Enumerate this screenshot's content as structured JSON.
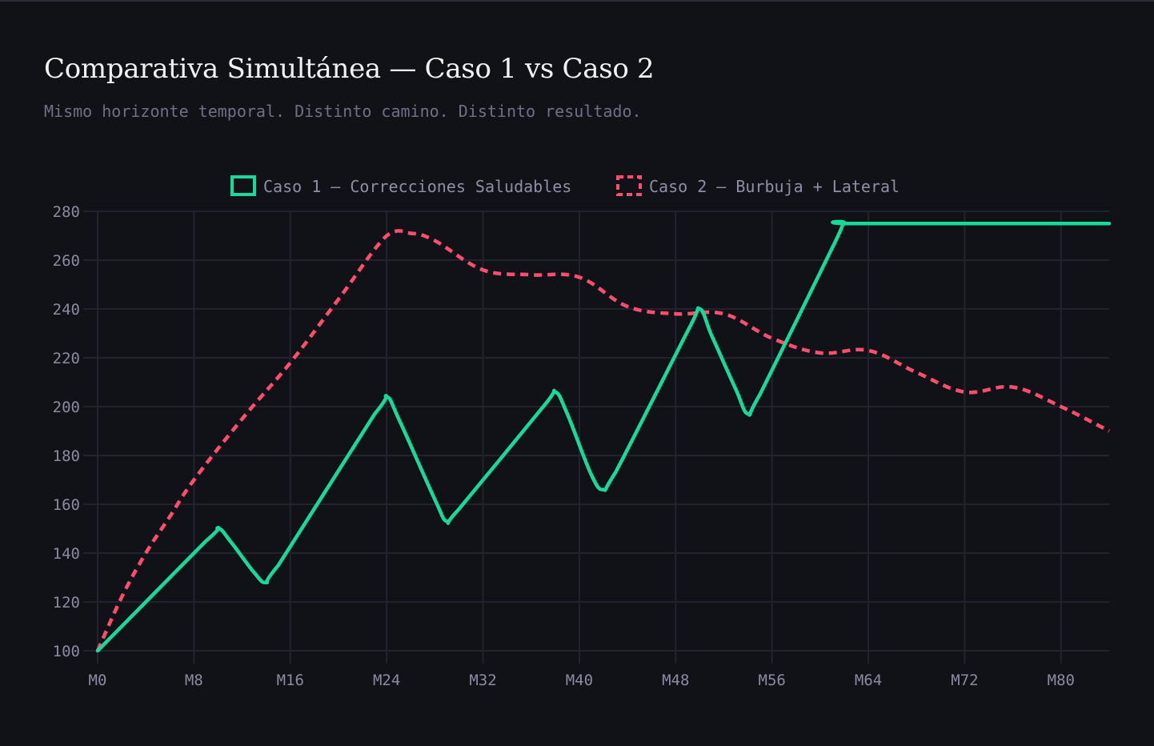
{
  "header": {
    "title": "Comparativa Simultánea — Caso 1 vs Caso 2",
    "subtitle": "Mismo horizonte temporal. Distinto camino. Distinto resultado."
  },
  "colors": {
    "background": "#111217",
    "grid": "#22232f",
    "case1": "#17d99a",
    "case2": "#ff4d6d",
    "tick": "#8a8aa2"
  },
  "chart_data": {
    "type": "line",
    "x_ticks": [
      "M0",
      "M8",
      "M16",
      "M24",
      "M32",
      "M40",
      "M48",
      "M56",
      "M64",
      "M72",
      "M80"
    ],
    "y_ticks": [
      "100",
      "120",
      "140",
      "160",
      "180",
      "200",
      "220",
      "240",
      "260",
      "280"
    ],
    "xlim": [
      0,
      84
    ],
    "ylim": [
      100,
      280
    ],
    "grid": true,
    "legend_position": "top-center",
    "series": [
      {
        "name": "Caso 1 — Correcciones Saludables",
        "style": "solid",
        "color": "#17d99a",
        "x": [
          0,
          9,
          10,
          11,
          13,
          14,
          15,
          23,
          24,
          25,
          28,
          29,
          30,
          37,
          38,
          39,
          41,
          42,
          43,
          49,
          50,
          51,
          53,
          54,
          55,
          61,
          62,
          63,
          84
        ],
        "y": [
          100,
          145,
          150,
          145,
          132,
          128,
          135,
          197,
          204,
          195,
          162,
          153,
          158,
          200,
          206,
          197,
          172,
          166,
          173,
          231,
          240,
          229,
          207,
          197,
          205,
          265,
          275,
          275,
          275
        ]
      },
      {
        "name": "Caso 2 — Burbuja + Lateral",
        "style": "dashed",
        "color": "#ff4d6d",
        "x": [
          0,
          2,
          4,
          6,
          8,
          12,
          16,
          20,
          24,
          26,
          28,
          32,
          36,
          40,
          44,
          48,
          52,
          56,
          60,
          64,
          68,
          72,
          76,
          80,
          84
        ],
        "y": [
          100,
          122,
          140,
          155,
          170,
          195,
          218,
          244,
          270,
          271,
          268,
          256,
          254,
          253,
          241,
          238,
          238,
          228,
          222,
          223,
          214,
          206,
          208,
          200,
          190
        ]
      }
    ]
  }
}
